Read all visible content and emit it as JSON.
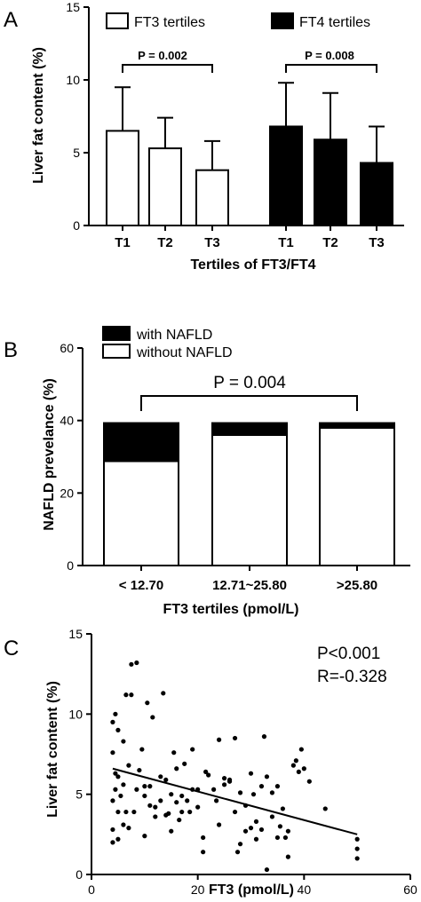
{
  "chart_data": [
    {
      "panel": "A",
      "type": "bar",
      "ylabel": "Liver fat content (%)",
      "xlabel": "Tertiles of FT3/FT4",
      "ylim": [
        0,
        15
      ],
      "yticks": [
        "0",
        "5",
        "10",
        "15"
      ],
      "grid": false,
      "legend_position": "top",
      "series": [
        {
          "name": "FT3 tertiles",
          "fill": "#ffffff",
          "categories": [
            "T1",
            "T2",
            "T3"
          ],
          "values": [
            6.5,
            5.3,
            3.8
          ],
          "errors": [
            3.0,
            2.1,
            2.0
          ]
        },
        {
          "name": "FT4 tertiles",
          "fill": "#000000",
          "categories": [
            "T1",
            "T2",
            "T3"
          ],
          "values": [
            6.8,
            5.9,
            4.3
          ],
          "errors": [
            3.0,
            3.2,
            2.5
          ]
        }
      ],
      "annotations": [
        {
          "text": "P = 0.002",
          "span": "FT3 tertiles T1–T3"
        },
        {
          "text": "P = 0.008",
          "span": "FT4 tertiles T1–T3"
        }
      ]
    },
    {
      "panel": "B",
      "type": "bar",
      "stacked": true,
      "ylabel": "NAFLD prevelance (%)",
      "xlabel": "FT3 tertiles (pmol/L)",
      "ylim": [
        0,
        60
      ],
      "yticks": [
        "0",
        "20",
        "40",
        "60"
      ],
      "grid": false,
      "legend_position": "top-left",
      "categories": [
        "< 12.70",
        "12.71~25.80",
        ">25.80"
      ],
      "series": [
        {
          "name": "without NAFLD",
          "fill": "#ffffff",
          "values": [
            28.8,
            36.0,
            38.0
          ]
        },
        {
          "name": "with NAFLD",
          "fill": "#000000",
          "values": [
            10.5,
            3.3,
            1.3
          ]
        }
      ],
      "annotations": [
        {
          "text": "P = 0.004",
          "span": "< 12.70 to >25.80"
        }
      ]
    },
    {
      "panel": "C",
      "type": "scatter",
      "ylabel": "Liver fat content (%)",
      "xlabel": "FT3 (pmol/L)",
      "xlim": [
        0,
        60
      ],
      "ylim": [
        0,
        15
      ],
      "xticks": [
        "0",
        "20",
        "40",
        "60"
      ],
      "yticks": [
        "0",
        "5",
        "10",
        "15"
      ],
      "grid": false,
      "stats": [
        "P<0.001",
        "R=-0.328"
      ],
      "regression": {
        "x": [
          4,
          50
        ],
        "y": [
          6.6,
          2.5
        ]
      },
      "points": [
        [
          4,
          2.0
        ],
        [
          4,
          2.8
        ],
        [
          4,
          4.6
        ],
        [
          4,
          7.6
        ],
        [
          4,
          9.5
        ],
        [
          4.5,
          10.0
        ],
        [
          4.5,
          5.3
        ],
        [
          4.5,
          6.3
        ],
        [
          5,
          6.1
        ],
        [
          5,
          3.9
        ],
        [
          5,
          9.0
        ],
        [
          5,
          2.2
        ],
        [
          5.5,
          4.9
        ],
        [
          6,
          3.1
        ],
        [
          6,
          8.3
        ],
        [
          6,
          5.6
        ],
        [
          6.5,
          11.2
        ],
        [
          6.5,
          3.9
        ],
        [
          7,
          6.8
        ],
        [
          7,
          2.9
        ],
        [
          7.5,
          13.1
        ],
        [
          7.5,
          11.2
        ],
        [
          8,
          3.9
        ],
        [
          8.5,
          13.2
        ],
        [
          8.5,
          5.3
        ],
        [
          9,
          6.5
        ],
        [
          9.5,
          7.8
        ],
        [
          10,
          5.5
        ],
        [
          10,
          4.9
        ],
        [
          10,
          2.4
        ],
        [
          10.5,
          10.7
        ],
        [
          11,
          5.5
        ],
        [
          11,
          4.3
        ],
        [
          11.5,
          9.8
        ],
        [
          12,
          4.2
        ],
        [
          12,
          3.6
        ],
        [
          13,
          6.1
        ],
        [
          13,
          4.6
        ],
        [
          13.5,
          11.3
        ],
        [
          14,
          3.7
        ],
        [
          14,
          5.9
        ],
        [
          14.5,
          3.8
        ],
        [
          15,
          5.0
        ],
        [
          15,
          2.7
        ],
        [
          15.5,
          7.6
        ],
        [
          16,
          4.5
        ],
        [
          16,
          6.6
        ],
        [
          16.5,
          3.4
        ],
        [
          17,
          4.9
        ],
        [
          17,
          3.9
        ],
        [
          17.5,
          6.9
        ],
        [
          18,
          4.6
        ],
        [
          18.5,
          3.9
        ],
        [
          19,
          7.8
        ],
        [
          19,
          5.3
        ],
        [
          20,
          4.2
        ],
        [
          20,
          5.3
        ],
        [
          21,
          2.3
        ],
        [
          21,
          1.4
        ],
        [
          21.5,
          6.4
        ],
        [
          22,
          6.2
        ],
        [
          23,
          5.3
        ],
        [
          23.5,
          4.6
        ],
        [
          24,
          8.4
        ],
        [
          24,
          3.1
        ],
        [
          25,
          6.0
        ],
        [
          25,
          5.6
        ],
        [
          26,
          5.9
        ],
        [
          26,
          5.8
        ],
        [
          27,
          3.9
        ],
        [
          27,
          8.5
        ],
        [
          27.5,
          1.4
        ],
        [
          28,
          5.1
        ],
        [
          28,
          1.9
        ],
        [
          29,
          2.7
        ],
        [
          29,
          4.3
        ],
        [
          30,
          2.9
        ],
        [
          30,
          6.3
        ],
        [
          30.5,
          5.0
        ],
        [
          31,
          2.2
        ],
        [
          31,
          3.3
        ],
        [
          32,
          2.8
        ],
        [
          32,
          5.5
        ],
        [
          32.5,
          8.6
        ],
        [
          33,
          0.3
        ],
        [
          33,
          6.1
        ],
        [
          34,
          3.6
        ],
        [
          34,
          5.1
        ],
        [
          35,
          2.3
        ],
        [
          35,
          5.5
        ],
        [
          35.5,
          3.0
        ],
        [
          36,
          4.1
        ],
        [
          36.5,
          2.3
        ],
        [
          37,
          2.7
        ],
        [
          37,
          1.1
        ],
        [
          38,
          6.8
        ],
        [
          38.5,
          7.1
        ],
        [
          39,
          6.4
        ],
        [
          39.5,
          7.8
        ],
        [
          40,
          6.6
        ],
        [
          41,
          5.8
        ],
        [
          44,
          4.1
        ],
        [
          50,
          2.2
        ],
        [
          50,
          1.6
        ],
        [
          50,
          1.0
        ]
      ]
    }
  ],
  "panel_labels": [
    "A",
    "B",
    "C"
  ]
}
